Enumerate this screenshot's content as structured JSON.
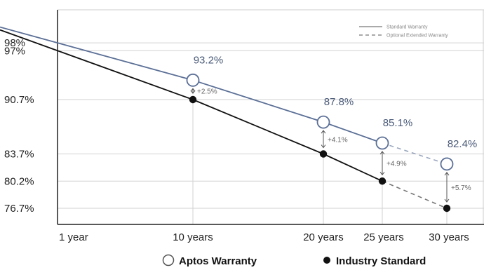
{
  "chart_data": {
    "type": "line",
    "x_categories": [
      "1 year",
      "10 years",
      "20 years",
      "25 years",
      "30 years"
    ],
    "x_years": [
      1,
      10,
      20,
      25,
      30
    ],
    "y_ticks": [
      {
        "value": 98,
        "label": "98%"
      },
      {
        "value": 97,
        "label": "97%"
      },
      {
        "value": 90.7,
        "label": "90.7%"
      },
      {
        "value": 83.7,
        "label": "83.7%"
      },
      {
        "value": 80.2,
        "label": "80.2%"
      },
      {
        "value": 76.7,
        "label": "76.7%"
      }
    ],
    "series": [
      {
        "name": "Aptos Warranty",
        "color": "#5b6f96",
        "values": [
          98,
          93.2,
          87.8,
          85.1,
          82.4
        ],
        "point_labels": [
          "",
          "93.2%",
          "87.8%",
          "85.1%",
          "82.4%"
        ],
        "marker": "open-circle"
      },
      {
        "name": "Industry Standard",
        "color": "#111111",
        "values": [
          97,
          90.7,
          83.7,
          80.2,
          76.7
        ],
        "point_labels": [
          "",
          "",
          "",
          "",
          ""
        ],
        "marker": "filled-circle"
      }
    ],
    "differences": [
      {
        "year": 10,
        "label": "+2.5%"
      },
      {
        "year": 20,
        "label": "+4.1%"
      },
      {
        "year": 25,
        "label": "+4.9%"
      },
      {
        "year": 30,
        "label": "+5.7%"
      }
    ],
    "line_styles": [
      {
        "name": "Standard Warranty",
        "style": "solid"
      },
      {
        "name": "Optional Extended Warranty",
        "style": "dashed"
      }
    ],
    "dashed_from_year": 25,
    "legend_placement_lines": "top-right",
    "legend_placement_series": "bottom-center",
    "grid": true,
    "ylim": [
      75,
      99
    ]
  }
}
